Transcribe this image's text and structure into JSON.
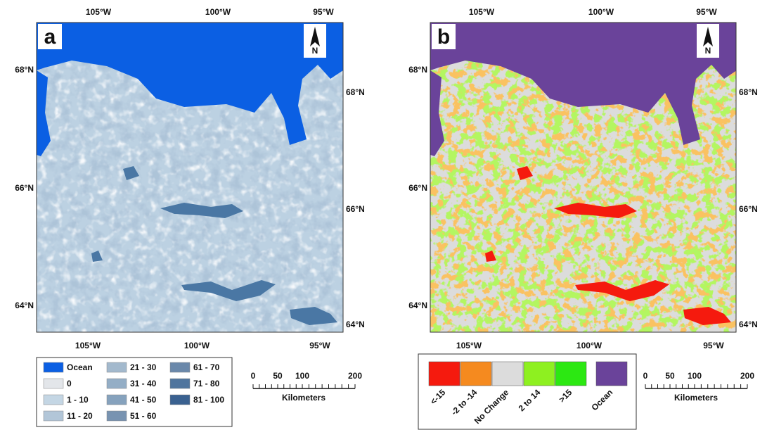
{
  "panels": [
    {
      "label": "a",
      "north": "N",
      "top_ticks": [
        "105°W",
        "100°W",
        "95°W"
      ],
      "bottom_ticks": [
        "105°W",
        "100°W",
        "95°W"
      ],
      "left_ticks": [
        "68°N",
        "66°N",
        "64°N"
      ],
      "right_ticks": [
        "68°N",
        "66°N",
        "64°N"
      ],
      "legend": [
        {
          "label": "Ocean",
          "color": "#0b5fe3"
        },
        {
          "label": "0",
          "color": "#e3e6ea"
        },
        {
          "label": "1 - 10",
          "color": "#c4d6e4"
        },
        {
          "label": "11 - 20",
          "color": "#b2c6d8"
        },
        {
          "label": "21 - 30",
          "color": "#a3b9cd"
        },
        {
          "label": "31 - 40",
          "color": "#94aec6"
        },
        {
          "label": "41 - 50",
          "color": "#86a2bd"
        },
        {
          "label": "51 - 60",
          "color": "#7893b1"
        },
        {
          "label": "61 - 70",
          "color": "#6a88aa"
        },
        {
          "label": "71 - 80",
          "color": "#4f759e"
        },
        {
          "label": "81 - 100",
          "color": "#3a6190"
        }
      ],
      "scale": {
        "ticks": [
          "0",
          "50",
          "100",
          "200"
        ],
        "unit": "Kilometers"
      }
    },
    {
      "label": "b",
      "north": "N",
      "top_ticks": [
        "105°W",
        "100°W",
        "95°W"
      ],
      "bottom_ticks": [
        "105°W",
        "100°W",
        "95°W"
      ],
      "left_ticks": [
        "68°N",
        "66°N",
        "64°N"
      ],
      "right_ticks": [
        "68°N",
        "66°N",
        "64°N"
      ],
      "legend": [
        {
          "label": "<-15",
          "color": "#f51a0e"
        },
        {
          "label": "-2 to -14",
          "color": "#f58a1f"
        },
        {
          "label": "No Change",
          "color": "#dcdcdc"
        },
        {
          "label": "2 to 14",
          "color": "#8ef020"
        },
        {
          "label": ">15",
          "color": "#2ce812"
        },
        {
          "label": "Ocean",
          "color": "#6a439a"
        }
      ],
      "scale": {
        "ticks": [
          "0",
          "50",
          "100",
          "200"
        ],
        "unit": "Kilometers"
      }
    }
  ]
}
